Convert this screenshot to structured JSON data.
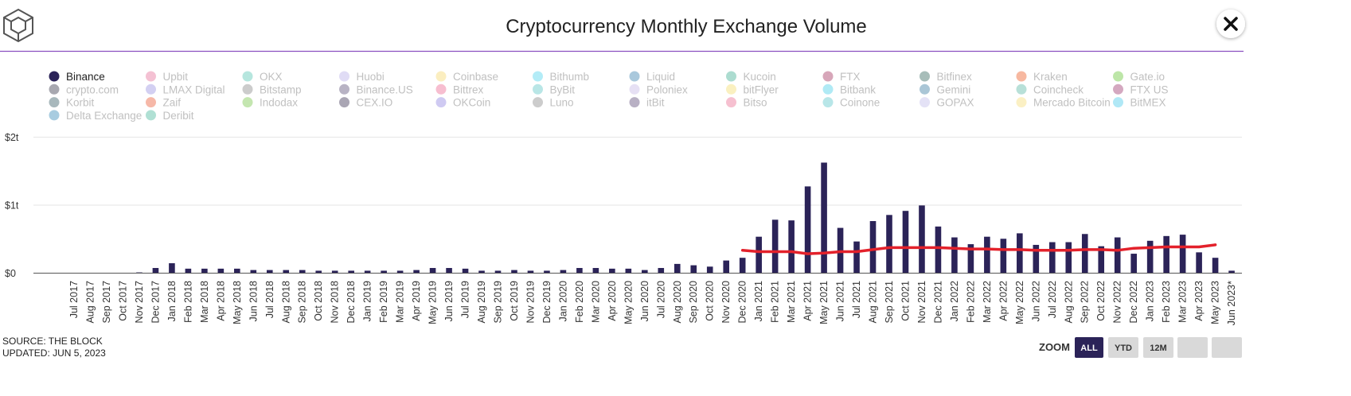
{
  "ui": {
    "source": "SOURCE: THE BLOCK",
    "updated": "UPDATED: JUN 5, 2023",
    "zoom_label": "ZOOM",
    "buttons": [
      "ALL",
      "YTD",
      "12M"
    ]
  },
  "chart_data": {
    "type": "bar",
    "title": "Cryptocurrency Monthly Exchange Volume",
    "categories": [
      "Jul 2017",
      "Aug 2017",
      "Sep 2017",
      "Oct 2017",
      "Nov 2017",
      "Dec 2017",
      "Jan 2018",
      "Feb 2018",
      "Mar 2018",
      "Apr 2018",
      "May 2018",
      "Jun 2018",
      "Jul 2018",
      "Aug 2018",
      "Sep 2018",
      "Oct 2018",
      "Nov 2018",
      "Dec 2018",
      "Jan 2019",
      "Feb 2019",
      "Mar 2019",
      "Apr 2019",
      "May 2019",
      "Jun 2019",
      "Jul 2019",
      "Aug 2019",
      "Sep 2019",
      "Oct 2019",
      "Nov 2019",
      "Dec 2019",
      "Jan 2020",
      "Feb 2020",
      "Mar 2020",
      "Apr 2020",
      "May 2020",
      "Jun 2020",
      "Jul 2020",
      "Aug 2020",
      "Sep 2020",
      "Oct 2020",
      "Nov 2020",
      "Dec 2020",
      "Jan 2021",
      "Feb 2021",
      "Mar 2021",
      "Apr 2021",
      "May 2021",
      "Jun 2021",
      "Jul 2021",
      "Aug 2021",
      "Sep 2021",
      "Oct 2021",
      "Nov 2021",
      "Dec 2021",
      "Jan 2022",
      "Feb 2022",
      "Mar 2022",
      "Apr 2022",
      "May 2022",
      "Jun 2022",
      "Jul 2022",
      "Aug 2022",
      "Sep 2022",
      "Oct 2022",
      "Nov 2022",
      "Dec 2022",
      "Jan 2023",
      "Feb 2023",
      "Mar 2023",
      "Apr 2023",
      "May 2023",
      "Jun 2023*"
    ],
    "series": [
      {
        "name": "Binance",
        "color": "#2b2358",
        "visible": true,
        "values": [
          0,
          0,
          0,
          0,
          0.005,
          0.07,
          0.14,
          0.06,
          0.06,
          0.06,
          0.06,
          0.04,
          0.04,
          0.04,
          0.04,
          0.03,
          0.03,
          0.03,
          0.03,
          0.03,
          0.03,
          0.04,
          0.07,
          0.07,
          0.06,
          0.03,
          0.03,
          0.04,
          0.03,
          0.03,
          0.04,
          0.07,
          0.07,
          0.06,
          0.06,
          0.04,
          0.07,
          0.13,
          0.11,
          0.09,
          0.18,
          0.22,
          0.53,
          0.78,
          0.77,
          1.27,
          1.62,
          0.66,
          0.46,
          0.76,
          0.85,
          0.91,
          0.99,
          0.68,
          0.52,
          0.42,
          0.53,
          0.5,
          0.58,
          0.41,
          0.45,
          0.45,
          0.57,
          0.39,
          0.52,
          0.28,
          0.47,
          0.54,
          0.56,
          0.3,
          0.22,
          0.03
        ]
      },
      {
        "name": "Upbit",
        "color": "#f4c1d3",
        "visible": false
      },
      {
        "name": "OKX",
        "color": "#b6e6de",
        "visible": false
      },
      {
        "name": "Huobi",
        "color": "#e0dcf5",
        "visible": false
      },
      {
        "name": "Coinbase",
        "color": "#fbeec0",
        "visible": false
      },
      {
        "name": "Bithumb",
        "color": "#b3ecf7",
        "visible": false
      },
      {
        "name": "Liquid",
        "color": "#a9c8dc",
        "visible": false
      },
      {
        "name": "Kucoin",
        "color": "#acdcd0",
        "visible": false
      },
      {
        "name": "FTX",
        "color": "#d7a6b9",
        "visible": false
      },
      {
        "name": "Bitfinex",
        "color": "#a7bdb9",
        "visible": false
      },
      {
        "name": "Kraken",
        "color": "#f7b8a0",
        "visible": false
      },
      {
        "name": "Gate.io",
        "color": "#bde6a8",
        "visible": false
      },
      {
        "name": "crypto.com",
        "color": "#a8a8b0",
        "visible": false
      },
      {
        "name": "LMAX Digital",
        "color": "#d3d0f2",
        "visible": false
      },
      {
        "name": "Bitstamp",
        "color": "#cccccc",
        "visible": false
      },
      {
        "name": "Binance.US",
        "color": "#b8b3c4",
        "visible": false
      },
      {
        "name": "Bittrex",
        "color": "#f7bed0",
        "visible": false
      },
      {
        "name": "ByBit",
        "color": "#b9e6e6",
        "visible": false
      },
      {
        "name": "Poloniex",
        "color": "#e6e0f4",
        "visible": false
      },
      {
        "name": "bitFlyer",
        "color": "#faf0c0",
        "visible": false
      },
      {
        "name": "Bitbank",
        "color": "#b0eaf5",
        "visible": false
      },
      {
        "name": "Gemini",
        "color": "#aac6d6",
        "visible": false
      },
      {
        "name": "Coincheck",
        "color": "#b8e0d8",
        "visible": false
      },
      {
        "name": "FTX US",
        "color": "#d4a8c0",
        "visible": false
      },
      {
        "name": "Korbit",
        "color": "#a8b8bc",
        "visible": false
      },
      {
        "name": "Zaif",
        "color": "#f6b8a8",
        "visible": false
      },
      {
        "name": "Indodax",
        "color": "#c4e6b0",
        "visible": false
      },
      {
        "name": "CEX.IO",
        "color": "#aaa6b4",
        "visible": false
      },
      {
        "name": "OKCoin",
        "color": "#cfcaf2",
        "visible": false
      },
      {
        "name": "Luno",
        "color": "#cccccc",
        "visible": false
      },
      {
        "name": "itBit",
        "color": "#b8b0c4",
        "visible": false
      },
      {
        "name": "Bitso",
        "color": "#f6c0d0",
        "visible": false
      },
      {
        "name": "Coinone",
        "color": "#b8e6e8",
        "visible": false
      },
      {
        "name": "GOPAX",
        "color": "#e4e2f6",
        "visible": false
      },
      {
        "name": "Mercado Bitcoin",
        "color": "#fbf0c4",
        "visible": false
      },
      {
        "name": "BitMEX",
        "color": "#b0e8f6",
        "visible": false
      },
      {
        "name": "Delta Exchange",
        "color": "#a8cce0",
        "visible": false
      },
      {
        "name": "Deribit",
        "color": "#b0e0d4",
        "visible": false
      }
    ],
    "overlay": {
      "type": "line",
      "color": "#e3212b",
      "values": [
        null,
        null,
        null,
        null,
        null,
        null,
        null,
        null,
        null,
        null,
        null,
        null,
        null,
        null,
        null,
        null,
        null,
        null,
        null,
        null,
        null,
        null,
        null,
        null,
        null,
        null,
        null,
        null,
        null,
        null,
        null,
        null,
        null,
        null,
        null,
        null,
        null,
        null,
        null,
        null,
        null,
        0.33,
        0.31,
        0.31,
        0.31,
        0.28,
        0.29,
        0.31,
        0.31,
        0.34,
        0.37,
        0.37,
        0.37,
        0.37,
        0.36,
        0.35,
        0.35,
        0.34,
        0.34,
        0.33,
        0.33,
        0.33,
        0.34,
        0.34,
        0.33,
        0.36,
        0.37,
        0.38,
        0.38,
        0.38,
        0.41,
        null
      ]
    },
    "ylim": [
      0,
      2
    ],
    "yticks": [
      {
        "value": 0,
        "label": "$0"
      },
      {
        "value": 1,
        "label": "$1t"
      },
      {
        "value": 2,
        "label": "$2t"
      }
    ],
    "grid": true
  }
}
